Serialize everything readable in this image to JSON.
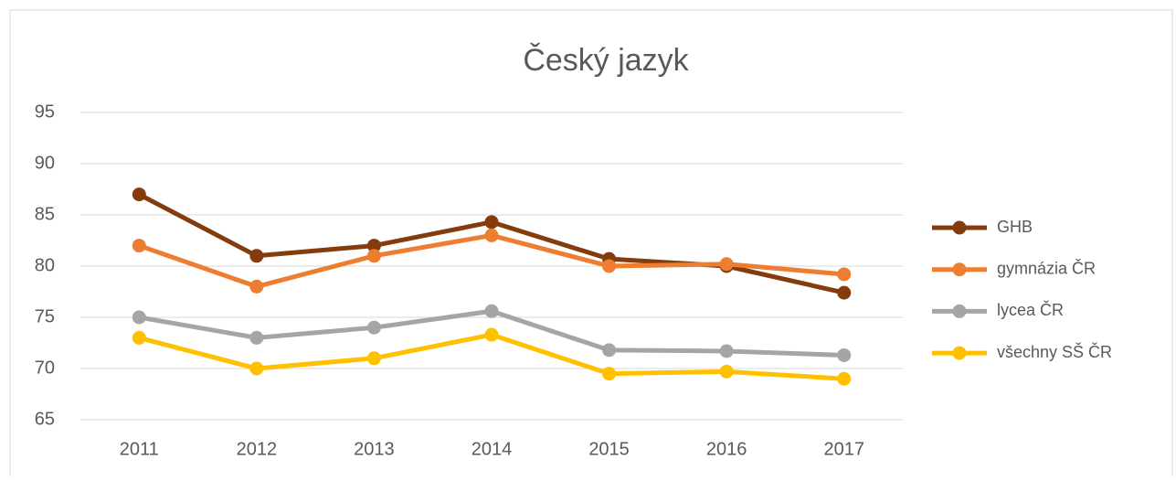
{
  "chart_data": {
    "type": "line",
    "title": "Český jazyk",
    "categories": [
      "2011",
      "2012",
      "2013",
      "2014",
      "2015",
      "2016",
      "2017"
    ],
    "series": [
      {
        "name": "GHB",
        "color": "#843c0c",
        "values": [
          87,
          81,
          82,
          84.3,
          80.7,
          80,
          77.4
        ]
      },
      {
        "name": "gymnázia ČR",
        "color": "#ed7d31",
        "values": [
          82,
          78,
          81,
          83,
          80,
          80.2,
          79.2
        ]
      },
      {
        "name": "lycea ČR",
        "color": "#a5a5a5",
        "values": [
          75,
          73,
          74,
          75.6,
          71.8,
          71.7,
          71.3
        ]
      },
      {
        "name": "všechny SŠ ČR",
        "color": "#ffc000",
        "values": [
          73,
          70,
          71,
          73.3,
          69.5,
          69.7,
          69
        ]
      }
    ],
    "ylim": [
      65,
      95
    ],
    "yticks": [
      65,
      70,
      75,
      80,
      85,
      90,
      95
    ],
    "grid": true,
    "legend": "right"
  }
}
